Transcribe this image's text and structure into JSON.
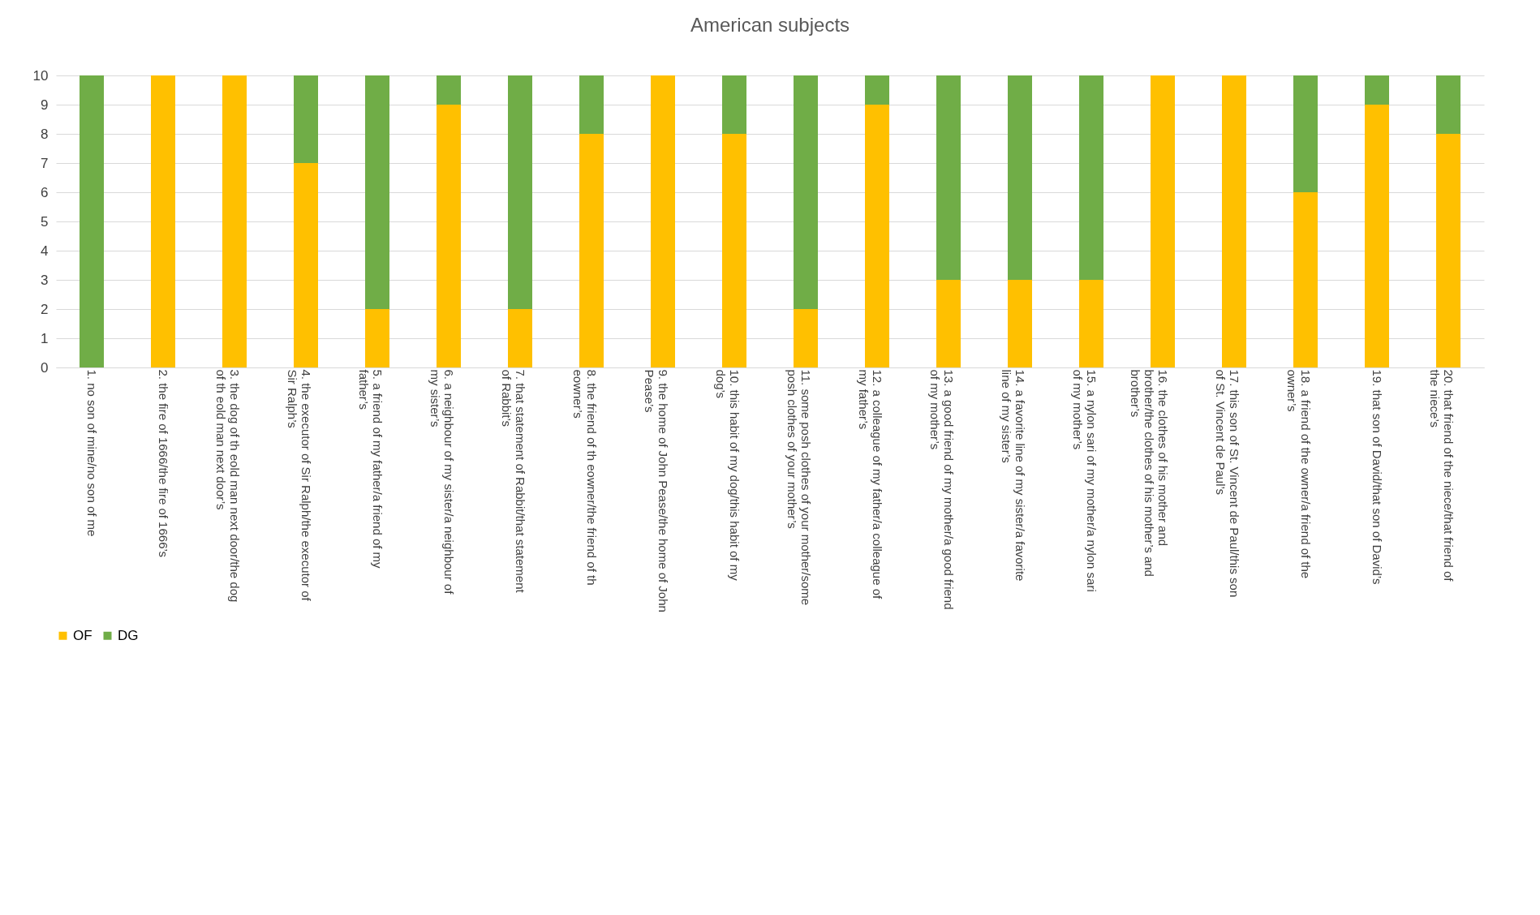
{
  "chart_data": {
    "type": "bar",
    "title": "American subjects",
    "stacked": true,
    "grid": "y",
    "legend": "bottom",
    "categories": [
      "1. no son of mine/no son of me",
      "2. the fire of 1666/the fire of 1666’s",
      "3. the dog of th eold man next door/the dog of th eold man next door’s",
      "4. the executor of Sir Ralph/the executor of Sir Ralph’s",
      "5. a friend of my father/a friend of my father’s",
      "6. a neighbour of my sister/a neighbour of my sister’s",
      "7. that statement of Rabbit/that statement of Rabbit’s",
      "8. the friend of th eowner/the friend of th eowner’s",
      "9. the home of John Pease/the home of John Pease’s",
      "10. this habit of my dog/this habit of my dog’s",
      "11. some posh clothes of your mother/some posh clothes of your mother’s",
      "12. a colleague of my father/a colleague of my father’s",
      "13. a good friend of my mother/a good friend of my mother’s",
      "14. a favorite line of my sister/a favorite line of my sister’s",
      "15. a nylon sari of my mother/a nylon sari of my mother’s",
      "16. the clothes of his mother and brother/the clothes of his mother’s and brother’s",
      "17. this son of St. Vincent de Paul/this son of St. Vincent de Paul’s",
      "18. a friend of the owner/a friend of the owner’s",
      "19. that son of David/that son of David’s",
      "20. that friend of the niece/that friend of the niece’s"
    ],
    "series": [
      {
        "name": "OF",
        "color": "#ffc000",
        "values": [
          0,
          10,
          10,
          7,
          2,
          9,
          2,
          8,
          10,
          8,
          2,
          9,
          3,
          3,
          3,
          10,
          10,
          6,
          9,
          8
        ]
      },
      {
        "name": "DG",
        "color": "#70ad47",
        "values": [
          10,
          0,
          0,
          3,
          8,
          1,
          8,
          2,
          0,
          2,
          8,
          1,
          7,
          7,
          7,
          0,
          0,
          4,
          1,
          2
        ]
      }
    ],
    "ylim": [
      0,
      10
    ],
    "yticks": [
      0,
      1,
      2,
      3,
      4,
      5,
      6,
      7,
      8,
      9,
      10
    ]
  }
}
